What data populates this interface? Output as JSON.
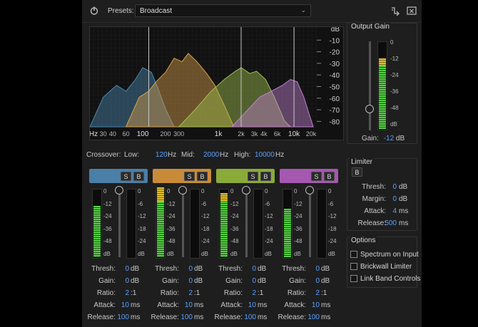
{
  "toolbar": {
    "presets_label": "Presets:",
    "preset_value": "Broadcast"
  },
  "graph": {
    "db_header": "dB",
    "db_ticks": [
      "-10",
      "-20",
      "-30",
      "-40",
      "-50",
      "-60",
      "-70",
      "-80"
    ],
    "hz_ticks": [
      "Hz",
      "30",
      "40",
      "60",
      "100",
      "200",
      "300",
      "1k",
      "2k",
      "3k",
      "4k",
      "6k",
      "10k",
      "20k"
    ],
    "band_colors": [
      "#4c87b0",
      "#d9a04c",
      "#a0c050",
      "#c080d0"
    ]
  },
  "output_gain": {
    "title": "Output Gain",
    "scale": [
      "0",
      "-12",
      "-24",
      "-36",
      "-48",
      "dB"
    ],
    "gain_label": "Gain:",
    "gain_value": "-12",
    "gain_unit": "dB"
  },
  "crossover": {
    "label": "Crossover:",
    "low_label": "Low:",
    "low_value": "120",
    "mid_label": "Mid:",
    "mid_value": "2000",
    "high_label": "High:",
    "high_value": "10000",
    "unit": "Hz"
  },
  "bands": [
    {
      "color": "#4a7fa8",
      "solo": "S",
      "bypass": "B",
      "scale_left": [
        "0",
        "-12",
        "-24",
        "-36",
        "-48",
        "dB"
      ],
      "scale_right": [
        "0",
        "-6",
        "-12",
        "-18",
        "-24",
        "dB"
      ],
      "thresh": "0",
      "gain": "0",
      "ratio": "2",
      "attack": "10",
      "release": "100"
    },
    {
      "color": "#c88b3a",
      "solo": "S",
      "bypass": "B",
      "scale_left": [
        "0",
        "-12",
        "-24",
        "-36",
        "-48",
        "dB"
      ],
      "scale_right": [
        "0",
        "-6",
        "-12",
        "-18",
        "-24",
        "dB"
      ],
      "thresh": "0",
      "gain": "0",
      "ratio": "2",
      "attack": "10",
      "release": "100"
    },
    {
      "color": "#8aaa3a",
      "solo": "S",
      "bypass": "B",
      "scale_left": [
        "0",
        "-12",
        "-24",
        "-36",
        "-48",
        "dB"
      ],
      "scale_right": [
        "0",
        "-6",
        "-12",
        "-18",
        "-24",
        "dB"
      ],
      "thresh": "0",
      "gain": "0",
      "ratio": "2",
      "attack": "10",
      "release": "100"
    },
    {
      "color": "#a558b0",
      "solo": "S",
      "bypass": "B",
      "scale_left": [
        "0",
        "-12",
        "-24",
        "-36",
        "-48",
        "dB"
      ],
      "scale_right": [
        "0",
        "-6",
        "-12",
        "-18",
        "-24",
        "dB"
      ],
      "thresh": "0",
      "gain": "0",
      "ratio": "2",
      "attack": "10",
      "release": "100"
    }
  ],
  "band_labels": {
    "thresh": "Thresh:",
    "gain": "Gain:",
    "ratio": "Ratio:",
    "attack": "Attack:",
    "release": "Release:",
    "db": "dB",
    "ratio_suffix": ":1",
    "ms": "ms"
  },
  "limiter": {
    "title": "Limiter",
    "bypass": "B",
    "thresh_label": "Thresh:",
    "thresh_value": "0",
    "thresh_unit": "dB",
    "margin_label": "Margin:",
    "margin_value": "0",
    "margin_unit": "dB",
    "attack_label": "Attack:",
    "attack_value": "4",
    "attack_unit": "ms",
    "release_label": "Release:",
    "release_value": "500",
    "release_unit": "ms"
  },
  "options": {
    "title": "Options",
    "items": [
      "Spectrum on Input",
      "Brickwall Limiter",
      "Link Band Controls"
    ]
  }
}
